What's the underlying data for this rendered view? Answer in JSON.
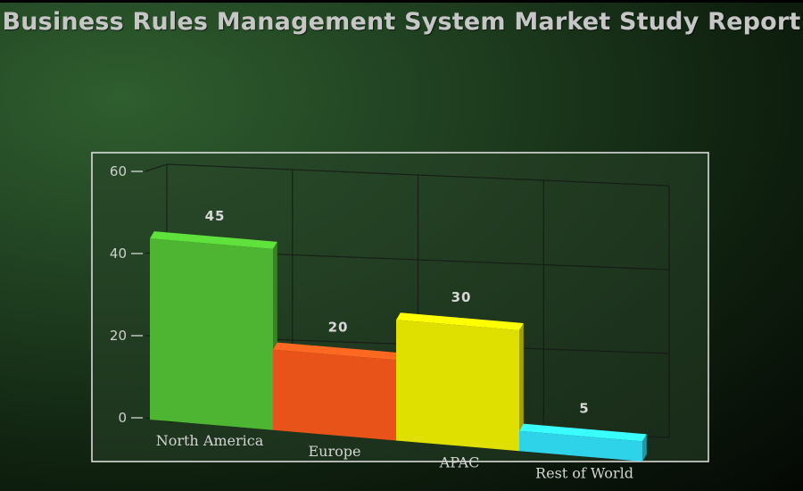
{
  "title": "Business Rules Management System Market Study Report",
  "chart_data": {
    "type": "bar",
    "title": "Business Rules Management System Market Study Report",
    "categories": [
      "North America",
      "Europe",
      "APAC",
      "Rest of World"
    ],
    "values": [
      45,
      20,
      30,
      5
    ],
    "data_labels": [
      "45",
      "20",
      "30",
      "5"
    ],
    "colors": [
      "#4db531",
      "#e8531a",
      "#e0e000",
      "#2ed3ea"
    ],
    "ylim": [
      0,
      60
    ],
    "yticks": [
      "0",
      "20",
      "40",
      "60"
    ],
    "xlabel": "",
    "ylabel": "",
    "grid": true,
    "style": "3d"
  }
}
